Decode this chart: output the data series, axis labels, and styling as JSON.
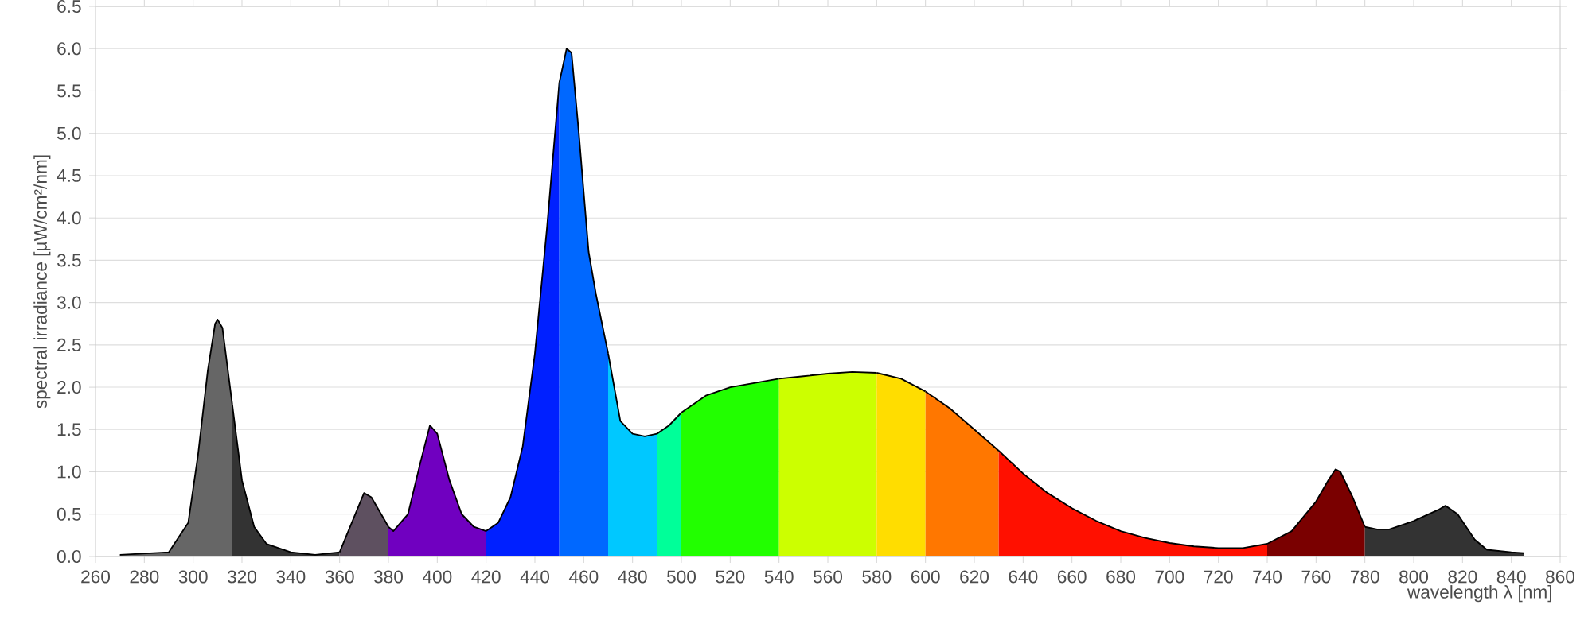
{
  "chart_data": {
    "type": "area",
    "xlabel": "wavelength λ [nm]",
    "ylabel": "spectral irradiance [µW/cm²/nm]",
    "xlim": [
      260,
      860
    ],
    "xticks": [
      260,
      280,
      300,
      320,
      340,
      360,
      380,
      400,
      420,
      440,
      460,
      480,
      500,
      520,
      540,
      560,
      580,
      600,
      620,
      640,
      660,
      680,
      700,
      720,
      740,
      760,
      780,
      800,
      820,
      840,
      860
    ],
    "ylim": [
      0,
      6.5
    ],
    "yticks": [
      {
        "value": 0,
        "label": "0.0"
      },
      0.5,
      {
        "value": 1,
        "label": "1.0"
      },
      1.5,
      {
        "value": 2,
        "label": "2.0"
      },
      2.5,
      {
        "value": 3,
        "label": "3.0"
      },
      3.5,
      {
        "value": 4,
        "label": "4.0"
      },
      4.5,
      {
        "value": 5,
        "label": "5.0"
      },
      5.5,
      {
        "value": 6,
        "label": "6.0"
      },
      6.5
    ],
    "grid": "y",
    "series": [
      {
        "color": "#666666",
        "x": [
          270,
          290,
          298,
          302,
          306,
          309,
          310,
          312,
          316
        ],
        "values": [
          0.02,
          0.05,
          0.4,
          1.2,
          2.2,
          2.75,
          2.8,
          2.7,
          1.8
        ]
      },
      {
        "color": "#333333",
        "x": [
          316,
          320,
          325,
          330,
          340,
          350,
          360
        ],
        "values": [
          1.8,
          0.9,
          0.35,
          0.15,
          0.05,
          0.02,
          0.05
        ]
      },
      {
        "color": "#5e5060",
        "x": [
          360,
          365,
          370,
          373,
          378,
          380
        ],
        "values": [
          0.05,
          0.4,
          0.75,
          0.7,
          0.45,
          0.35
        ]
      },
      {
        "color": "#7000c0",
        "x": [
          380,
          382,
          388,
          393,
          397,
          400,
          405,
          410,
          415,
          420
        ],
        "values": [
          0.35,
          0.3,
          0.5,
          1.1,
          1.55,
          1.45,
          0.9,
          0.5,
          0.35,
          0.3
        ]
      },
      {
        "color": "#0020ff",
        "x": [
          420,
          425,
          430,
          435,
          440,
          445,
          450
        ],
        "values": [
          0.3,
          0.4,
          0.7,
          1.3,
          2.4,
          3.9,
          5.6
        ]
      },
      {
        "color": "#0068ff",
        "x": [
          450,
          453,
          455,
          458,
          462,
          465,
          470
        ],
        "values": [
          5.6,
          6.0,
          5.95,
          5.0,
          3.6,
          3.1,
          2.4
        ]
      },
      {
        "color": "#00c8ff",
        "x": [
          470,
          475,
          480,
          485,
          490
        ],
        "values": [
          2.4,
          1.6,
          1.45,
          1.42,
          1.45
        ]
      },
      {
        "color": "#00ff99",
        "x": [
          490,
          495,
          500
        ],
        "values": [
          1.45,
          1.55,
          1.7
        ]
      },
      {
        "color": "#22ff00",
        "x": [
          500,
          510,
          520,
          530,
          540
        ],
        "values": [
          1.7,
          1.9,
          2.0,
          2.05,
          2.1
        ]
      },
      {
        "color": "#ccff00",
        "x": [
          540,
          550,
          560,
          570,
          580
        ],
        "values": [
          2.1,
          2.13,
          2.16,
          2.18,
          2.17
        ]
      },
      {
        "color": "#ffdd00",
        "x": [
          580,
          590,
          600
        ],
        "values": [
          2.17,
          2.1,
          1.95
        ]
      },
      {
        "color": "#ff7700",
        "x": [
          600,
          610,
          620,
          630
        ],
        "values": [
          1.95,
          1.75,
          1.5,
          1.25
        ]
      },
      {
        "color": "#ff1000",
        "x": [
          630,
          640,
          650,
          660,
          670,
          680,
          690,
          700,
          710,
          720,
          730,
          740
        ],
        "values": [
          1.25,
          0.98,
          0.75,
          0.57,
          0.42,
          0.3,
          0.22,
          0.16,
          0.12,
          0.1,
          0.1,
          0.15
        ]
      },
      {
        "color": "#7a0000",
        "x": [
          740,
          750,
          760,
          765,
          768,
          770,
          775,
          780
        ],
        "values": [
          0.15,
          0.3,
          0.65,
          0.9,
          1.03,
          1.0,
          0.7,
          0.35
        ]
      },
      {
        "color": "#333333",
        "x": [
          780,
          785,
          790,
          800,
          810,
          813,
          818,
          825,
          830,
          840,
          845
        ],
        "values": [
          0.35,
          0.32,
          0.32,
          0.42,
          0.55,
          0.6,
          0.5,
          0.2,
          0.08,
          0.05,
          0.04
        ]
      }
    ]
  }
}
